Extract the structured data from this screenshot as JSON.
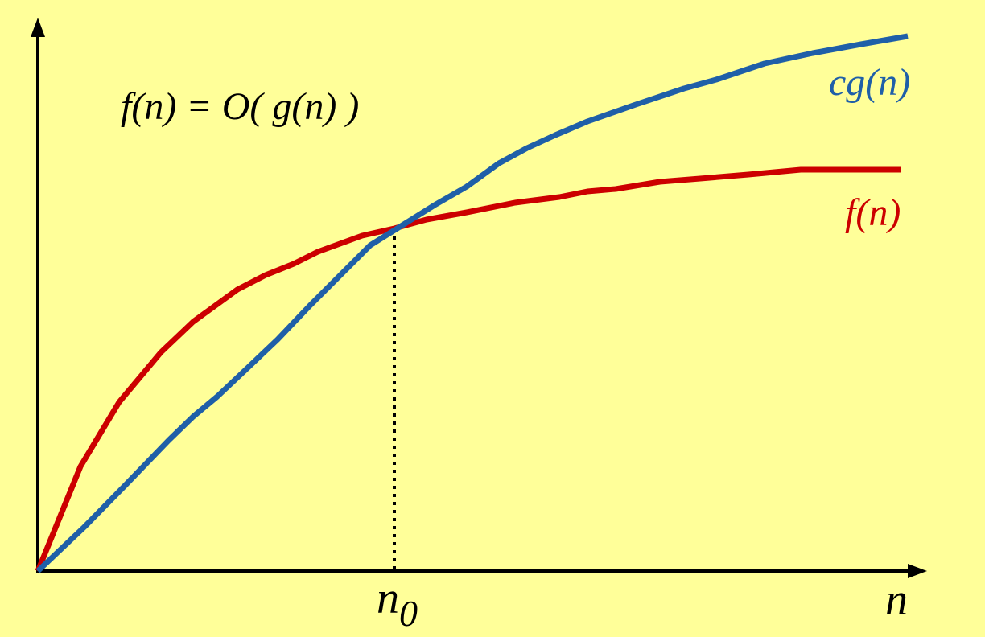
{
  "equation": "f(n) = O( g(n) )",
  "curve_labels": {
    "cg": "cg(n)",
    "f": "f(n)"
  },
  "axis_labels": {
    "threshold": {
      "base": "n",
      "subscript": "0"
    },
    "x": "n"
  }
}
